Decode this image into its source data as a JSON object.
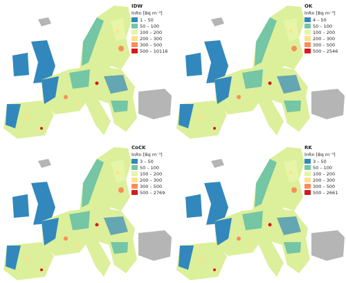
{
  "panels": [
    {
      "title": "IDW",
      "legend_title": "lnRn [Bq m⁻³]",
      "legend": [
        {
          "label": "1 – 50",
          "color": "#3288bd"
        },
        {
          "label": "50 – 100",
          "color": "#74c6a5"
        },
        {
          "label": "100 – 200",
          "color": "#e6f5a8"
        },
        {
          "label": "200 – 300",
          "color": "#fee08b"
        },
        {
          "label": "300 – 500",
          "color": "#fc8d59"
        },
        {
          "label": "500 – 10116",
          "color": "#d7191c"
        }
      ]
    },
    {
      "title": "OK",
      "legend_title": "lnRn [Bq m⁻³]",
      "legend": [
        {
          "label": "4 – 50",
          "color": "#3288bd"
        },
        {
          "label": "50 – 100",
          "color": "#74c6a5"
        },
        {
          "label": "100 – 200",
          "color": "#e6f5a8"
        },
        {
          "label": "200 – 300",
          "color": "#fee08b"
        },
        {
          "label": "300 – 500",
          "color": "#fc8d59"
        },
        {
          "label": "500 – 2546",
          "color": "#d7191c"
        }
      ]
    },
    {
      "title": "CoCK",
      "legend_title": "lnRn [Bq m⁻³]",
      "legend": [
        {
          "label": "3 – 50",
          "color": "#3288bd"
        },
        {
          "label": "50 – 100",
          "color": "#74c6a5"
        },
        {
          "label": "100 – 200",
          "color": "#e6f5a8"
        },
        {
          "label": "200 – 300",
          "color": "#fee08b"
        },
        {
          "label": "300 – 500",
          "color": "#fc8d59"
        },
        {
          "label": "500 – 2769",
          "color": "#d7191c"
        }
      ]
    },
    {
      "title": "RK",
      "legend_title": "lnRn [Bq m⁻³]",
      "legend": [
        {
          "label": "3 – 50",
          "color": "#3288bd"
        },
        {
          "label": "50 – 100",
          "color": "#74c6a5"
        },
        {
          "label": "100 – 200",
          "color": "#e6f5a8"
        },
        {
          "label": "200 – 300",
          "color": "#fee08b"
        },
        {
          "label": "300 – 500",
          "color": "#fc8d59"
        },
        {
          "label": "500 – 2661",
          "color": "#d7191c"
        }
      ]
    }
  ]
}
